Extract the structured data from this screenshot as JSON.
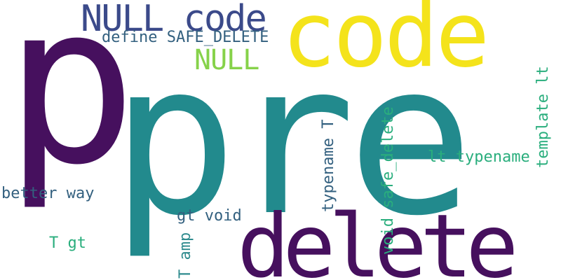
{
  "words": [
    {
      "text": "pre",
      "color": "#228a8d"
    },
    {
      "text": "p",
      "color": "#46105e"
    },
    {
      "text": "code",
      "color": "#f4e31b"
    },
    {
      "text": "delete",
      "color": "#46105e"
    },
    {
      "text": "NULL code",
      "color": "#3b4a8a"
    },
    {
      "text": "define SAFE_DELETE",
      "color": "#33607f"
    },
    {
      "text": "NULL",
      "color": "#86d24a"
    },
    {
      "text": "better way",
      "color": "#33607f"
    },
    {
      "text": "gt void",
      "color": "#33607f"
    },
    {
      "text": "T gt",
      "color": "#2aae7d"
    },
    {
      "text": "lt typename",
      "color": "#2aae7d"
    },
    {
      "text": "typename T",
      "color": "#33607f"
    },
    {
      "text": "void safe_delete",
      "color": "#2aae7d"
    },
    {
      "text": "template lt",
      "color": "#2aae7d"
    },
    {
      "text": "T amp",
      "color": "#2f8b8e"
    }
  ]
}
